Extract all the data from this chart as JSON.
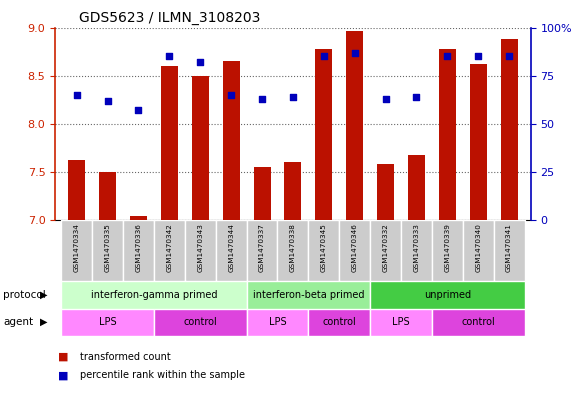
{
  "title": "GDS5623 / ILMN_3108203",
  "samples": [
    "GSM1470334",
    "GSM1470335",
    "GSM1470336",
    "GSM1470342",
    "GSM1470343",
    "GSM1470344",
    "GSM1470337",
    "GSM1470338",
    "GSM1470345",
    "GSM1470346",
    "GSM1470332",
    "GSM1470333",
    "GSM1470339",
    "GSM1470340",
    "GSM1470341"
  ],
  "transformed_count": [
    7.62,
    7.5,
    7.04,
    8.6,
    8.5,
    8.65,
    7.55,
    7.6,
    8.78,
    8.96,
    7.58,
    7.68,
    8.78,
    8.62,
    8.88
  ],
  "percentile_rank": [
    65,
    62,
    57,
    85,
    82,
    65,
    63,
    64,
    85,
    87,
    63,
    64,
    85,
    85,
    85
  ],
  "ylim_left": [
    7.0,
    9.0
  ],
  "ylim_right": [
    0,
    100
  ],
  "yticks_left": [
    7.0,
    7.5,
    8.0,
    8.5,
    9.0
  ],
  "yticks_right": [
    0,
    25,
    50,
    75,
    100
  ],
  "bar_color": "#bb1100",
  "dot_color": "#0000bb",
  "bar_width": 0.55,
  "protocols": [
    {
      "label": "interferon-gamma primed",
      "start": 0,
      "end": 5,
      "color": "#ccffcc"
    },
    {
      "label": "interferon-beta primed",
      "start": 6,
      "end": 9,
      "color": "#99ee99"
    },
    {
      "label": "unprimed",
      "start": 10,
      "end": 14,
      "color": "#44cc44"
    }
  ],
  "agents": [
    {
      "label": "LPS",
      "start": 0,
      "end": 2,
      "color": "#ff88ff"
    },
    {
      "label": "control",
      "start": 3,
      "end": 5,
      "color": "#dd44dd"
    },
    {
      "label": "LPS",
      "start": 6,
      "end": 7,
      "color": "#ff88ff"
    },
    {
      "label": "control",
      "start": 8,
      "end": 9,
      "color": "#dd44dd"
    },
    {
      "label": "LPS",
      "start": 10,
      "end": 11,
      "color": "#ff88ff"
    },
    {
      "label": "control",
      "start": 12,
      "end": 14,
      "color": "#dd44dd"
    }
  ],
  "grid_color": "#000000",
  "grid_alpha": 0.6,
  "grid_linestyle": ":",
  "background_color": "#ffffff",
  "sample_box_color": "#cccccc",
  "left_axis_color": "#cc2200",
  "right_axis_color": "#0000bb",
  "legend_items": [
    {
      "label": "transformed count",
      "color": "#bb1100",
      "marker": "s"
    },
    {
      "label": "percentile rank within the sample",
      "color": "#0000bb",
      "marker": "s"
    }
  ],
  "protocol_label": "protocol",
  "agent_label": "agent"
}
